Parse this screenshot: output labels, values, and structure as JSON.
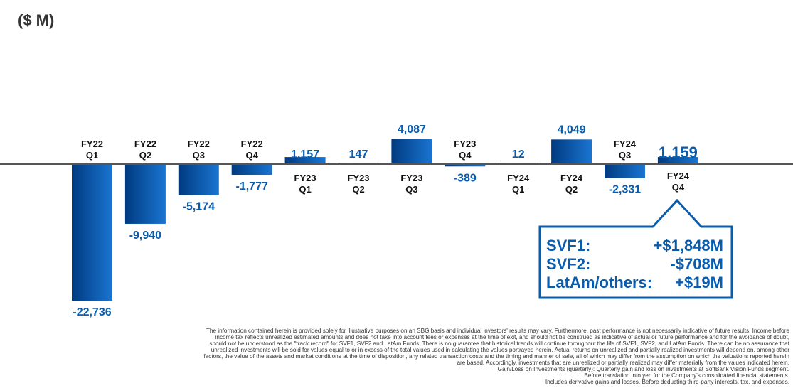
{
  "chart_data": {
    "type": "bar",
    "unit_label": "($ M)",
    "categories": [
      [
        "FY22",
        "Q1"
      ],
      [
        "FY22",
        "Q2"
      ],
      [
        "FY22",
        "Q3"
      ],
      [
        "FY22",
        "Q4"
      ],
      [
        "FY23",
        "Q1"
      ],
      [
        "FY23",
        "Q2"
      ],
      [
        "FY23",
        "Q3"
      ],
      [
        "FY23",
        "Q4"
      ],
      [
        "FY24",
        "Q1"
      ],
      [
        "FY24",
        "Q2"
      ],
      [
        "FY24",
        "Q3"
      ],
      [
        "FY24",
        "Q4"
      ]
    ],
    "values": [
      -22736,
      -9940,
      -5174,
      -1777,
      1157,
      147,
      4087,
      -389,
      12,
      4049,
      -2331,
      1159
    ],
    "value_labels": [
      "-22,736",
      "-9,940",
      "-5,174",
      "-1,777",
      "1,157",
      "147",
      "4,087",
      "-389",
      "12",
      "4,049",
      "-2,331",
      "1,159"
    ],
    "highlight_index": 11,
    "colors": {
      "bar_dark": "#003a80",
      "bar_light": "#1a75d1",
      "label": "#0a5cad",
      "axis": "#555555",
      "category": "#111111"
    }
  },
  "callout": {
    "rows": [
      {
        "label": "SVF1:",
        "value": "+$1,848M"
      },
      {
        "label": "SVF2:",
        "value": "-$708M"
      },
      {
        "label": "LatAm/others:",
        "value": "+$19M"
      }
    ],
    "border_color": "#0a5cad"
  },
  "disclaimer": [
    "The information contained herein is provided solely for illustrative purposes on an SBG basis and individual investors' results may vary. Furthermore, past performance is not necessarily indicative of future results. Income before",
    "income tax reflects unrealized estimated amounts and does not take into account fees or expenses at the time of exit, and should not be construed as indicative of actual or future performance and for the avoidance of doubt,",
    "should not be understood as the \"track record\" for SVF1, SVF2 and LatAm Funds. There is no guarantee that historical trends will continue throughout the life of SVF1, SVF2, and LatAm Funds. There can be no assurance that",
    "unrealized investments will be sold for values equal to or in excess of the total values used in calculating the values portrayed herein. Actual returns on unrealized and partially realized investments will depend on, among other",
    "factors, the value of the assets and market conditions at the time of disposition, any related transaction costs and the timing and manner of sale, all of which may differ from the assumption on which the valuations reported herein",
    "are based. Accordingly, investments that are unrealized or partially realized may differ materially from the values indicated herein.",
    "Gain/Loss on Investments (quarterly): Quarterly gain and loss on investments at SoftBank Vision Funds segment.",
    "Before translation into yen for the Company's consolidated financial statements.",
    "Includes derivative gains and losses. Before deducting third-party interests, tax, and expenses."
  ]
}
